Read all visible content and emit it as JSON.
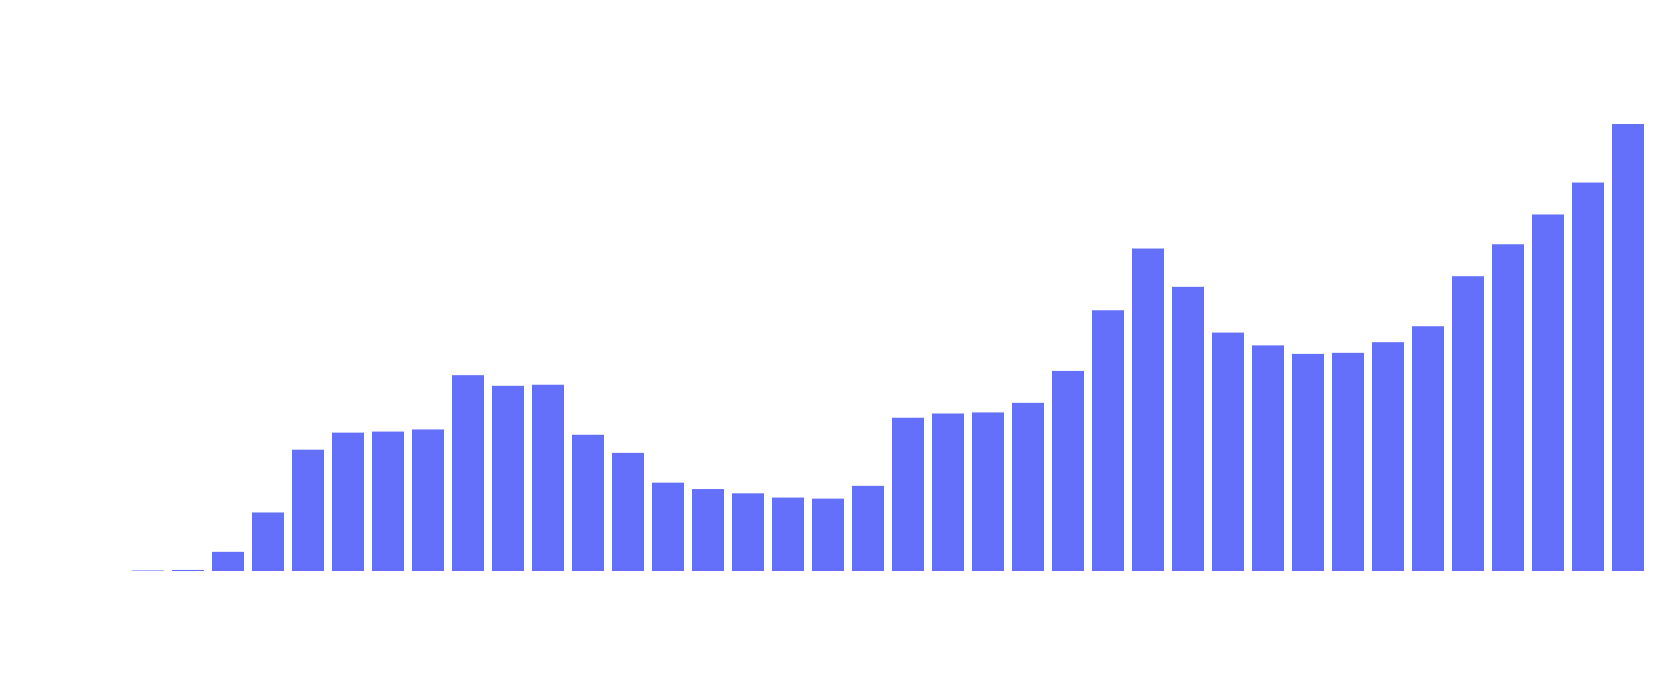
{
  "chart_data": {
    "type": "bar",
    "values": [
      0.5,
      1,
      18,
      55,
      114,
      130,
      131,
      133,
      184,
      174,
      175,
      128,
      111,
      83,
      77,
      73,
      69,
      68,
      80,
      144,
      148,
      149,
      158,
      188,
      245,
      303,
      267,
      224,
      212,
      204,
      205,
      215,
      230,
      277,
      307,
      335,
      365,
      420
    ],
    "color": "#6470f9",
    "ylim": [
      0,
      420
    ]
  }
}
